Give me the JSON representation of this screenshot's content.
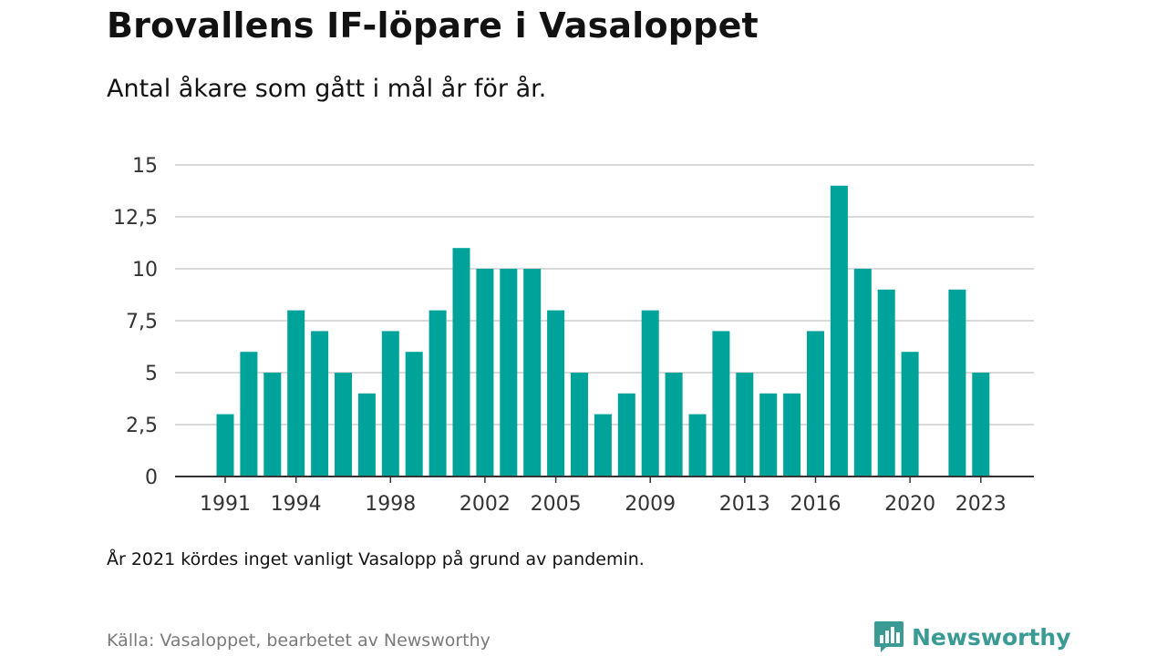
{
  "header": {
    "title": "Brovallens IF-löpare i Vasaloppet",
    "subtitle": "Antal åkare som gått i mål år för år."
  },
  "footer": {
    "note": "År 2021 kördes inget vanligt Vasalopp på grund av pandemin.",
    "source": "Källa: Vasaloppet, bearbetet av Newsworthy",
    "brand": "Newsworthy",
    "brand_icon": "newsworthy-bar-chart-icon"
  },
  "colors": {
    "bar": "#00a39a",
    "grid": "#d9d9d9",
    "axis": "#333333",
    "brand": "#3a9a94"
  },
  "chart_data": {
    "type": "bar",
    "title": "Brovallens IF-löpare i Vasaloppet",
    "subtitle": "Antal åkare som gått i mål år för år.",
    "xlabel": "",
    "ylabel": "",
    "ylim": [
      0,
      15
    ],
    "yticks": [
      0,
      2.5,
      5,
      7.5,
      10,
      12.5,
      15
    ],
    "ytick_labels": [
      "0",
      "2,5",
      "5",
      "7,5",
      "10",
      "12,5",
      "15"
    ],
    "xtick_labels": [
      "1991",
      "1994",
      "1998",
      "2002",
      "2005",
      "2009",
      "2013",
      "2016",
      "2020",
      "2023"
    ],
    "grid": true,
    "categories": [
      1991,
      1992,
      1993,
      1994,
      1995,
      1996,
      1997,
      1998,
      1999,
      2000,
      2001,
      2002,
      2003,
      2004,
      2005,
      2006,
      2007,
      2008,
      2009,
      2010,
      2011,
      2012,
      2013,
      2014,
      2015,
      2016,
      2017,
      2018,
      2019,
      2020,
      2021,
      2022,
      2023
    ],
    "values": [
      3,
      6,
      5,
      8,
      7,
      5,
      4,
      7,
      6,
      8,
      11,
      10,
      10,
      10,
      8,
      5,
      3,
      4,
      8,
      5,
      3,
      7,
      5,
      4,
      4,
      7,
      14,
      10,
      9,
      6,
      null,
      9,
      5
    ]
  }
}
